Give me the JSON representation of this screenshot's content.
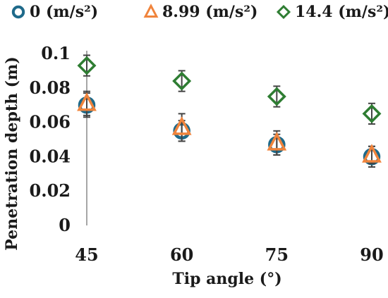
{
  "chart_data": {
    "type": "scatter",
    "xlabel": "Tip angle (°)",
    "ylabel": "Penetration depth (m)",
    "categories": [
      "45",
      "60",
      "75",
      "90"
    ],
    "ylim": [
      0,
      0.1
    ],
    "yticks": [
      "0",
      "0.02",
      "0.04",
      "0.06",
      "0.08",
      "0.1"
    ],
    "grid": false,
    "legend_position": "top",
    "series": [
      {
        "name": "0 (m/s²)",
        "marker": "circle",
        "color": "#1f6a8a",
        "values": [
          0.07,
          0.055,
          0.047,
          0.04
        ],
        "errors": [
          0.007,
          0.006,
          0.006,
          0.006
        ]
      },
      {
        "name": "8.99 (m/s²)",
        "marker": "triangle",
        "color": "#f0843c",
        "values": [
          0.071,
          0.057,
          0.048,
          0.041
        ],
        "errors": [
          0.007,
          0.008,
          0.007,
          0.005
        ]
      },
      {
        "name": "14.4 (m/s²)",
        "marker": "diamond",
        "color": "#2e7d32",
        "values": [
          0.093,
          0.084,
          0.075,
          0.065
        ],
        "errors": [
          0.006,
          0.006,
          0.006,
          0.006
        ]
      }
    ]
  }
}
